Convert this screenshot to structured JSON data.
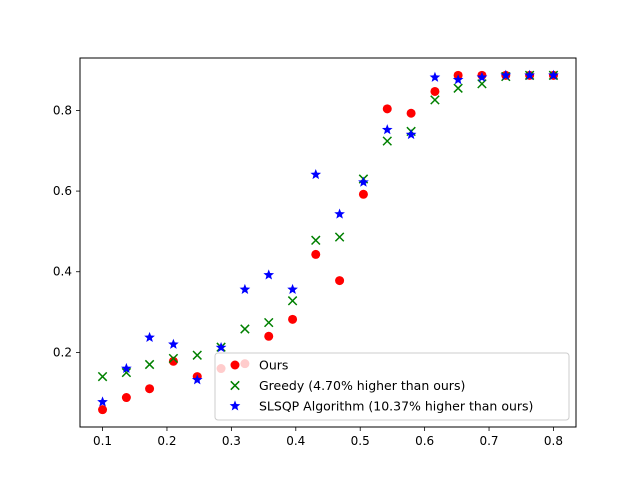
{
  "chart_data": {
    "type": "scatter",
    "title": "",
    "xlabel": "",
    "ylabel": "",
    "xlim": [
      0.065,
      0.835
    ],
    "ylim": [
      0.015,
      0.93
    ],
    "grid": false,
    "legend_position": "lower right",
    "x_ticks": [
      "0.1",
      "0.2",
      "0.3",
      "0.4",
      "0.5",
      "0.6",
      "0.7",
      "0.8"
    ],
    "y_ticks": [
      "0.2",
      "0.4",
      "0.6",
      "0.8"
    ],
    "series": [
      {
        "name": "Ours",
        "marker": "circle",
        "color": "#ff0000",
        "points": [
          [
            0.1,
            0.058
          ],
          [
            0.137,
            0.088
          ],
          [
            0.173,
            0.11
          ],
          [
            0.21,
            0.178
          ],
          [
            0.247,
            0.14
          ],
          [
            0.284,
            0.16
          ],
          [
            0.321,
            0.172
          ],
          [
            0.358,
            0.24
          ],
          [
            0.395,
            0.282
          ],
          [
            0.431,
            0.443
          ],
          [
            0.468,
            0.378
          ],
          [
            0.505,
            0.592
          ],
          [
            0.542,
            0.804
          ],
          [
            0.579,
            0.793
          ],
          [
            0.616,
            0.847
          ],
          [
            0.652,
            0.887
          ],
          [
            0.689,
            0.887
          ],
          [
            0.726,
            0.887
          ],
          [
            0.763,
            0.887
          ],
          [
            0.8,
            0.887
          ]
        ]
      },
      {
        "name": "Greedy (4.70% higher than ours)",
        "marker": "x",
        "color": "#008000",
        "points": [
          [
            0.1,
            0.14
          ],
          [
            0.137,
            0.15
          ],
          [
            0.173,
            0.17
          ],
          [
            0.21,
            0.185
          ],
          [
            0.247,
            0.193
          ],
          [
            0.284,
            0.213
          ],
          [
            0.321,
            0.258
          ],
          [
            0.358,
            0.274
          ],
          [
            0.395,
            0.328
          ],
          [
            0.431,
            0.478
          ],
          [
            0.468,
            0.486
          ],
          [
            0.505,
            0.63
          ],
          [
            0.542,
            0.724
          ],
          [
            0.579,
            0.748
          ],
          [
            0.616,
            0.826
          ],
          [
            0.652,
            0.855
          ],
          [
            0.689,
            0.866
          ],
          [
            0.726,
            0.884
          ],
          [
            0.763,
            0.887
          ],
          [
            0.8,
            0.887
          ]
        ]
      },
      {
        "name": "SLSQP Algorithm (10.37% higher than ours)",
        "marker": "star",
        "color": "#0000ff",
        "points": [
          [
            0.1,
            0.077
          ],
          [
            0.137,
            0.16
          ],
          [
            0.173,
            0.237
          ],
          [
            0.21,
            0.22
          ],
          [
            0.247,
            0.132
          ],
          [
            0.284,
            0.212
          ],
          [
            0.321,
            0.356
          ],
          [
            0.358,
            0.392
          ],
          [
            0.395,
            0.356
          ],
          [
            0.431,
            0.641
          ],
          [
            0.468,
            0.543
          ],
          [
            0.505,
            0.622
          ],
          [
            0.542,
            0.752
          ],
          [
            0.579,
            0.74
          ],
          [
            0.616,
            0.882
          ],
          [
            0.652,
            0.876
          ],
          [
            0.689,
            0.882
          ],
          [
            0.726,
            0.887
          ],
          [
            0.763,
            0.887
          ],
          [
            0.8,
            0.887
          ]
        ]
      }
    ]
  }
}
